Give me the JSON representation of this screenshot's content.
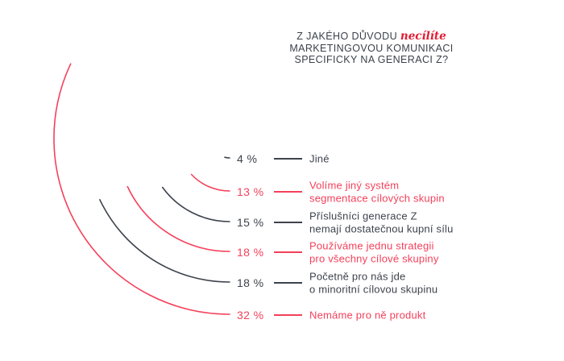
{
  "title": {
    "line1_prefix": "Z JAKÉHO DŮVODU ",
    "line1_emphasis": "necílíte",
    "line2": "MARKETINGOVOU KOMUNIKACI",
    "line3": "SPECIFICKY NA GENERACI Z?"
  },
  "colors": {
    "red": "#f4415b",
    "dark": "#3d434d",
    "title_red": "#e41a30",
    "title_dark": "#3a414b",
    "background": "#ffffff"
  },
  "chart_data": {
    "type": "radial-arc",
    "title": "Z JAKÉHO DŮVODU necílíte MARKETINGOVOU KOMUNIKACI SPECIFICKY NA GENERACI Z?",
    "unit": "%",
    "note": "Arc angular span is proportional to percentage of 360 degrees; all arcs end at the 6 o'clock position next to their value label.",
    "items": [
      {
        "value": 4,
        "value_label": "4 %",
        "color": "dark",
        "label": "Jiné",
        "label_line1": "Jiné",
        "label_line2": ""
      },
      {
        "value": 13,
        "value_label": "13 %",
        "color": "red",
        "label": "Volíme jiný systém segmentace cílových skupin",
        "label_line1": "Volíme jiný systém",
        "label_line2": "segmentace cílových skupin"
      },
      {
        "value": 15,
        "value_label": "15 %",
        "color": "dark",
        "label": "Příslušníci generace Z nemají dostatečnou kupní sílu",
        "label_line1": "Příslušníci generace Z",
        "label_line2": "nemají dostatečnou kupní sílu"
      },
      {
        "value": 18,
        "value_label": "18 %",
        "color": "red",
        "label": "Používáme jednu strategii pro všechny cílové skupiny",
        "label_line1": "Používáme jednu strategii",
        "label_line2": "pro všechny cílové skupiny"
      },
      {
        "value": 18,
        "value_label": "18 %",
        "color": "dark",
        "label": "Početně pro nás jde o minoritní cílovou skupinu",
        "label_line1": "Početně pro nás jde",
        "label_line2": "o minoritní cílovou skupinu"
      },
      {
        "value": 32,
        "value_label": "32 %",
        "color": "red",
        "label": "Nemáme pro ně produkt",
        "label_line1": "Nemáme pro ně produkt",
        "label_line2": ""
      }
    ]
  }
}
